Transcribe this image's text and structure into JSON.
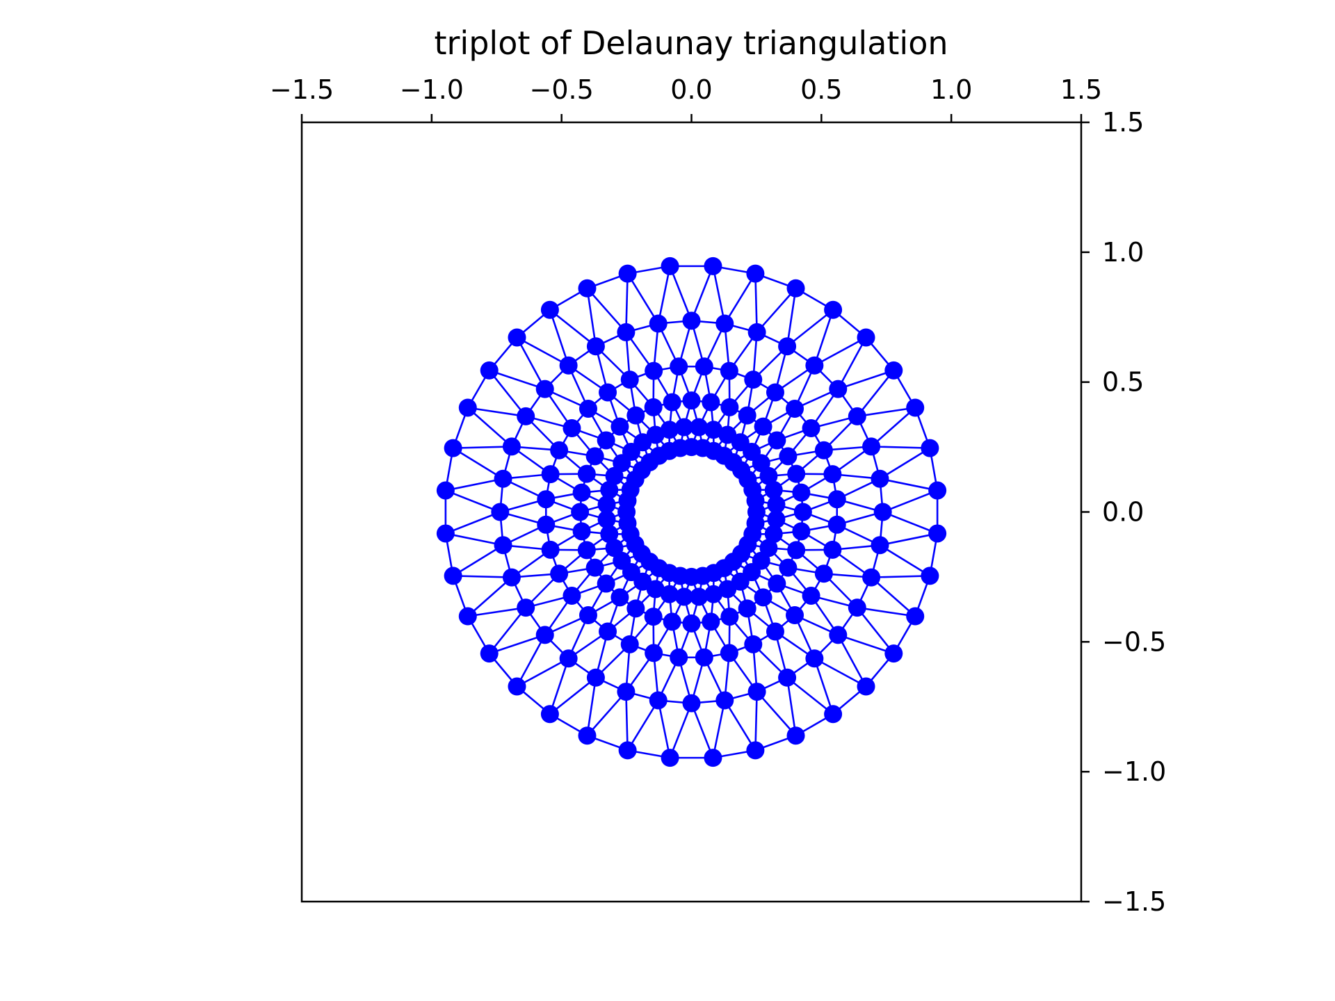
{
  "chart_data": {
    "type": "scatter",
    "subtype": "triplot",
    "title": "triplot of Delaunay triangulation",
    "xlabel": "",
    "ylabel": "",
    "xlim": [
      -1.5,
      1.5
    ],
    "ylim": [
      -1.5,
      1.5
    ],
    "x_axis_position": "top",
    "y_axis_position": "right",
    "grid": false,
    "legend": "none",
    "x_ticks": [
      -1.5,
      -1.0,
      -0.5,
      0.0,
      0.5,
      1.0,
      1.5
    ],
    "x_tick_labels": [
      "−1.5",
      "−1.0",
      "−0.5",
      "0.0",
      "0.5",
      "1.0",
      "1.5"
    ],
    "y_ticks": [
      1.5,
      1.0,
      0.5,
      0.0,
      -0.5,
      -1.0,
      -1.5
    ],
    "y_tick_labels": [
      "1.5",
      "1.0",
      "0.5",
      "0.0",
      "−0.5",
      "−1.0",
      "−1.5"
    ],
    "series": [
      {
        "marker": "o",
        "line_style": "-",
        "rings": {
          "min_radius": 0.25,
          "radii": [
            0.25,
            0.3276,
            0.4291,
            0.5621,
            0.7364,
            0.95
          ],
          "angles_per_ring": 36,
          "angle_offset_alternates": true
        }
      }
    ],
    "colors": {
      "series": "#0000ff",
      "axes": "#000000",
      "background": "#ffffff"
    }
  }
}
